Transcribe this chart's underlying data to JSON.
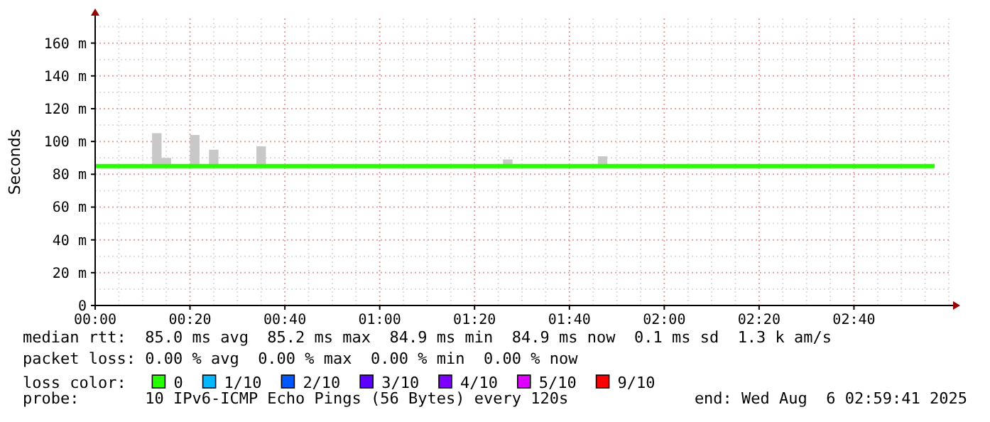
{
  "chart_data": {
    "type": "step",
    "ylabel": "Seconds",
    "legend_title": "loss color:",
    "legend": "bottom",
    "grid": true,
    "xlim": [
      0,
      3
    ],
    "xticks": [
      {
        "value": 0,
        "label": "00:00"
      },
      {
        "value": 0.3333,
        "label": "00:20"
      },
      {
        "value": 0.6667,
        "label": "00:40"
      },
      {
        "value": 1,
        "label": "01:00"
      },
      {
        "value": 1.3333,
        "label": "01:20"
      },
      {
        "value": 1.6667,
        "label": "01:40"
      },
      {
        "value": 2,
        "label": "02:00"
      },
      {
        "value": 2.3333,
        "label": "02:20"
      },
      {
        "value": 2.6667,
        "label": "02:40"
      }
    ],
    "ylim": [
      0,
      175
    ],
    "yticks": [
      0,
      {
        "value": 20,
        "label": "20 m"
      },
      {
        "value": 40,
        "label": "40 m"
      },
      {
        "value": 60,
        "label": "60 m"
      },
      {
        "value": 80,
        "label": "80 m"
      },
      {
        "value": 100,
        "label": "100 m"
      },
      {
        "value": 120,
        "label": "120 m"
      },
      {
        "value": 140,
        "label": "140 m"
      },
      {
        "value": 160,
        "label": "160 m"
      }
    ],
    "series": [
      {
        "name": "0",
        "color": "#26ff00",
        "x": [
          0,
          0.2,
          0.2333,
          0.2667,
          0.3333,
          0.3667,
          0.4,
          0.4333,
          0.5667,
          0.6,
          1.4333,
          1.4667,
          1.7667,
          1.8,
          2.95
        ],
        "values": [
          85,
          85,
          85,
          85,
          85,
          85,
          85,
          85,
          85,
          85,
          85,
          85,
          85,
          85,
          85
        ],
        "lower": [
          85,
          85,
          85,
          85,
          85,
          85,
          85,
          85,
          85,
          85,
          85,
          85,
          85,
          85,
          85
        ],
        "upper": [
          85,
          105,
          90,
          85,
          104,
          85,
          95,
          85,
          97,
          85,
          89,
          85,
          91,
          85,
          85
        ]
      },
      {
        "name": "1/10",
        "color": "#00b8ff"
      },
      {
        "name": "2/10",
        "color": "#0059ff"
      },
      {
        "name": "3/10",
        "color": "#5e00ff"
      },
      {
        "name": "4/10",
        "color": "#7e00ff"
      },
      {
        "name": "5/10",
        "color": "#dd00ff"
      },
      {
        "name": "9/10",
        "color": "#ff0000"
      }
    ],
    "annotations": [
      "median rtt:  85.0 ms avg  85.2 ms max  84.9 ms min  84.9 ms now  0.1 ms sd  1.3 k am/s",
      "packet loss: 0.00 % avg  0.00 % max  0.00 % min  0.00 % now",
      "probe:       10 IPv6-ICMP Echo Pings (56 Bytes) every 120s",
      "end: Wed Aug  6 02:59:41 2025"
    ]
  }
}
